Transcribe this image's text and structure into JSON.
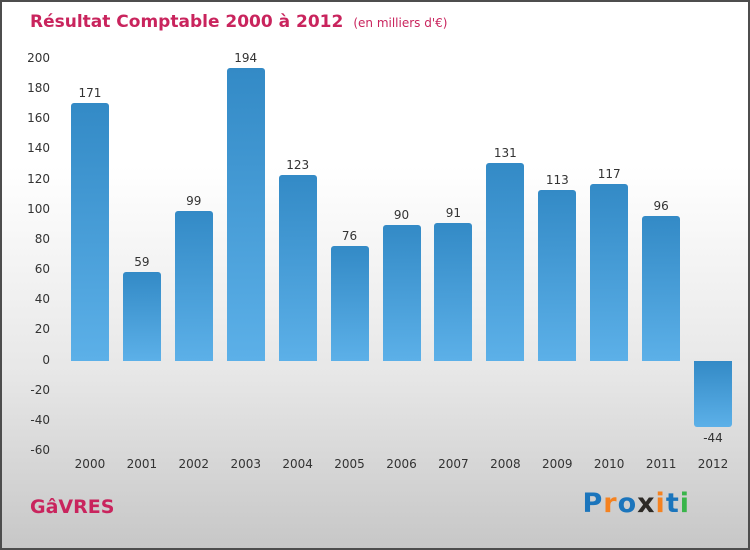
{
  "title": "Résultat Comptable 2000 à 2012",
  "subtitle": "(en milliers d'€)",
  "footer": {
    "name": "GâVRES"
  },
  "logo": {
    "name": "Proxiti",
    "letters": [
      {
        "ch": "P",
        "color": "#1b75bc"
      },
      {
        "ch": "r",
        "color": "#f5821f"
      },
      {
        "ch": "o",
        "color": "#1b75bc"
      },
      {
        "ch": "x",
        "color": "#2d2a26"
      },
      {
        "ch": "i",
        "color": "#f5821f"
      },
      {
        "ch": "t",
        "color": "#1b75bc"
      },
      {
        "ch": "i",
        "color": "#39b54a"
      }
    ]
  },
  "colors": {
    "title": "#c9245d",
    "bar_top": "#338ac6",
    "bar_bottom": "#5cb0e8",
    "tick_label": "#333333"
  },
  "chart_data": {
    "type": "bar",
    "title": "Résultat Comptable 2000 à 2012",
    "subtitle": "(en milliers d'€)",
    "categories": [
      "2000",
      "2001",
      "2002",
      "2003",
      "2004",
      "2005",
      "2006",
      "2007",
      "2008",
      "2009",
      "2010",
      "2011",
      "2012"
    ],
    "values": [
      171,
      59,
      99,
      194,
      123,
      76,
      90,
      91,
      131,
      113,
      117,
      96,
      -44
    ],
    "xlabel": "",
    "ylabel": "",
    "ylim": [
      -60,
      200
    ],
    "ytick_step": 20,
    "grid": false,
    "legend": "none",
    "bar_color_gradient": [
      "#338ac6",
      "#5cb0e8"
    ],
    "value_labels": true
  }
}
